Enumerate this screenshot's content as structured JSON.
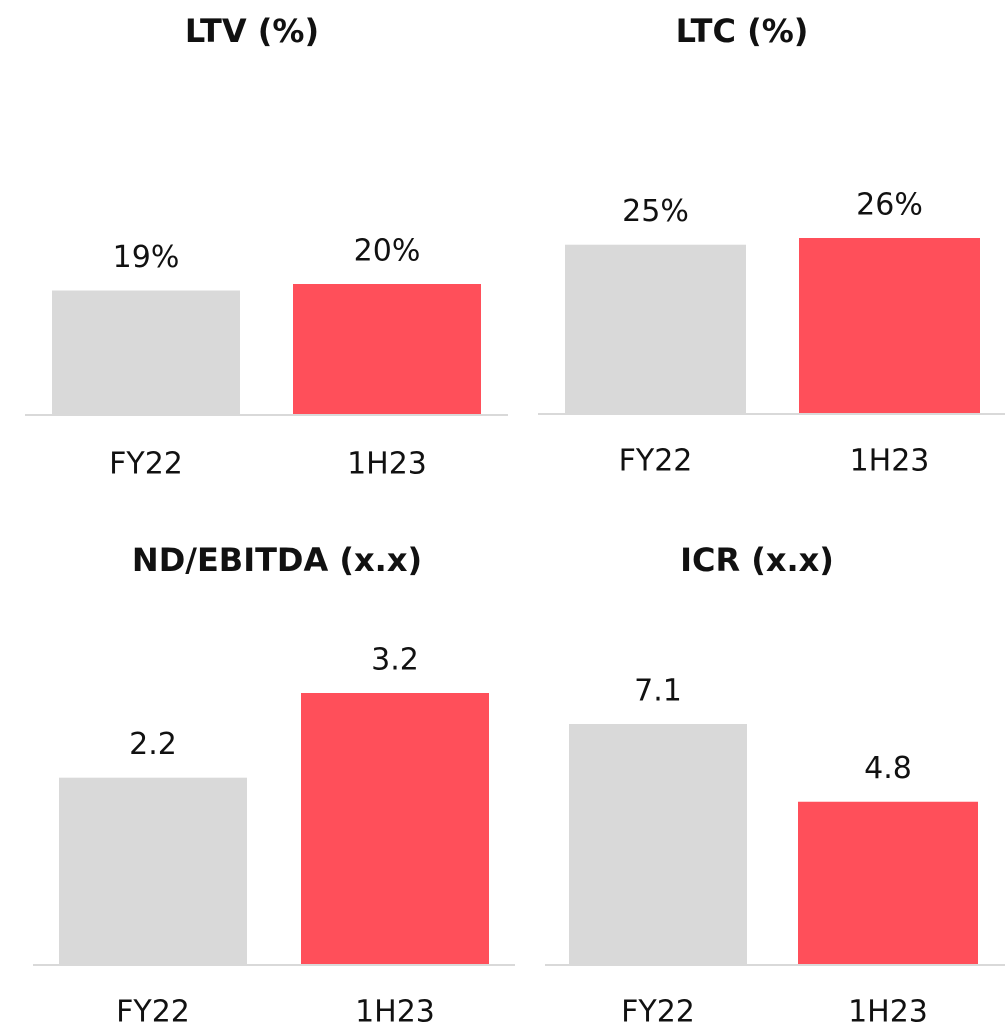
{
  "chart_data": [
    {
      "type": "bar",
      "title": "LTV (%)",
      "categories": [
        "FY22",
        "1H23"
      ],
      "values": [
        19,
        20
      ],
      "value_labels": [
        "19%",
        "20%"
      ],
      "colors": [
        "#d9d9d9",
        "#ff4f5a"
      ]
    },
    {
      "type": "bar",
      "title": "LTC (%)",
      "categories": [
        "FY22",
        "1H23"
      ],
      "values": [
        25,
        26
      ],
      "value_labels": [
        "25%",
        "26%"
      ],
      "colors": [
        "#d9d9d9",
        "#ff4f5a"
      ]
    },
    {
      "type": "bar",
      "title": "ND/EBITDA (x.x)",
      "categories": [
        "FY22",
        "1H23"
      ],
      "values": [
        2.2,
        3.2
      ],
      "colors": [
        "#d9d9d9",
        "#ff4f5a"
      ]
    },
    {
      "type": "bar",
      "title": "ICR (x.x)",
      "categories": [
        "FY22",
        "1H23"
      ],
      "values": [
        7.1,
        4.8
      ],
      "colors": [
        "#d9d9d9",
        "#ff4f5a"
      ]
    }
  ]
}
